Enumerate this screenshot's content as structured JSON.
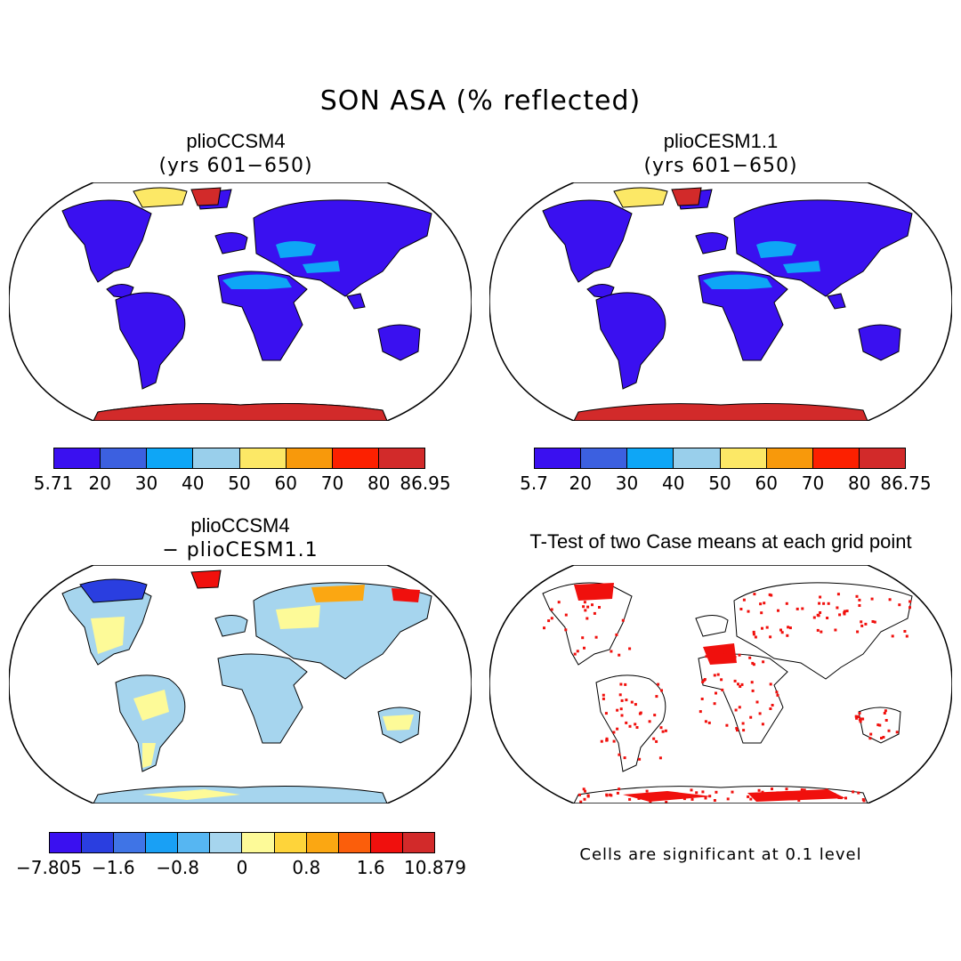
{
  "figure": {
    "title": "SON ASA (% reflected)"
  },
  "panels": [
    {
      "id": "tl",
      "title": "plioCCSM4",
      "subtitle": "(yrs 601−650)",
      "colorbar": {
        "colors": [
          "#3a10f0",
          "#3c60e0",
          "#0ea6f6",
          "#99cfeb",
          "#fce866",
          "#f8990b",
          "#fc2000",
          "#d22a2a"
        ],
        "labels": [
          "5.71",
          "20",
          "30",
          "40",
          "50",
          "60",
          "70",
          "80",
          "86.95"
        ]
      }
    },
    {
      "id": "tr",
      "title": "plioCESM1.1",
      "subtitle": "(yrs 601−650)",
      "colorbar": {
        "colors": [
          "#3a10f0",
          "#3c60e0",
          "#0ea6f6",
          "#99cfeb",
          "#fce866",
          "#f8990b",
          "#fc2000",
          "#d22a2a"
        ],
        "labels": [
          "5.7",
          "20",
          "30",
          "40",
          "50",
          "60",
          "70",
          "80",
          "86.75"
        ]
      }
    },
    {
      "id": "bl",
      "title": "plioCCSM4",
      "subtitle": "− plioCESM1.1",
      "colorbar": {
        "colors": [
          "#3a10f0",
          "#2a3ee0",
          "#3f74e6",
          "#19a0f5",
          "#56b6f2",
          "#a6d5ee",
          "#fdfa98",
          "#fed43a",
          "#fba712",
          "#fb5e0b",
          "#f0100d",
          "#d22a2a"
        ],
        "labels": [
          "−7.805",
          "−1.6",
          "−0.8",
          "0",
          "0.8",
          "1.6",
          "10.879"
        ]
      }
    },
    {
      "id": "br",
      "title": "T-Test of two Case means at each grid point",
      "note": "Cells are significant at 0.1 level"
    }
  ]
}
